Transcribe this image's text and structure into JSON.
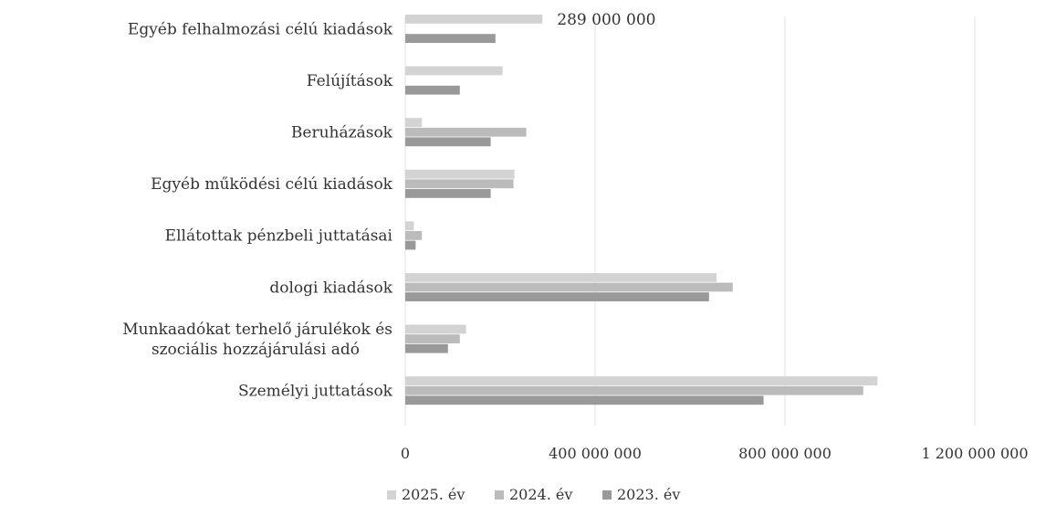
{
  "chart_data": {
    "type": "bar",
    "orientation": "horizontal",
    "categories": [
      "Egyéb felhalmozási célú kiadások",
      "Felújítások",
      "Beruházások",
      "Egyéb működési célú kiadások",
      "Ellátottak pénzbeli juttatásai",
      "dologi kiadások",
      "Munkaadókat terhelő járulékok és szociális hozzájárulási adó",
      "Személyi juttatások"
    ],
    "series": [
      {
        "name": "2025. év",
        "color": "#d3d3d3",
        "values": [
          289000000,
          205000000,
          35000000,
          230000000,
          18000000,
          656000000,
          128000000,
          995000000
        ]
      },
      {
        "name": "2024. év",
        "color": "#bbbbbb",
        "values": [
          0,
          0,
          255000000,
          228000000,
          35000000,
          690000000,
          115000000,
          965000000
        ]
      },
      {
        "name": "2023. év",
        "color": "#999999",
        "values": [
          190000000,
          115000000,
          180000000,
          180000000,
          22000000,
          640000000,
          90000000,
          755000000
        ]
      }
    ],
    "data_labels": [
      {
        "category": "Egyéb felhalmozási célú kiadások",
        "series": "2025. év",
        "text": "289 000 000"
      }
    ],
    "xlim": [
      0,
      1200000000
    ],
    "xticks": [
      0,
      400000000,
      800000000,
      1200000000
    ],
    "xtick_labels": [
      "0",
      "400 000 000",
      "800 000 000",
      "1 200 000 000"
    ],
    "grid": true,
    "legend_position": "bottom",
    "title": "",
    "xlabel": "",
    "ylabel": ""
  }
}
